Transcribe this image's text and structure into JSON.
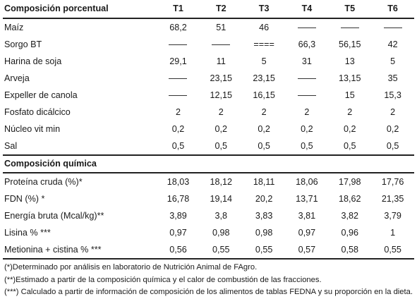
{
  "headers": {
    "label": "Composición porcentual",
    "cols": [
      "T1",
      "T2",
      "T3",
      "T4",
      "T5",
      "T6"
    ]
  },
  "rows1": [
    {
      "label": "Maíz",
      "values": [
        "68,2",
        "51",
        "46",
        "—",
        "—",
        "—"
      ]
    },
    {
      "label": "Sorgo BT",
      "values": [
        "—",
        "—",
        "====",
        "66,3",
        "56,15",
        "42"
      ]
    },
    {
      "label": "Harina de soja",
      "values": [
        "29,1",
        "11",
        "5",
        "31",
        "13",
        "5"
      ]
    },
    {
      "label": "Arveja",
      "values": [
        "—",
        "23,15",
        "23,15",
        "—",
        "13,15",
        "35"
      ]
    },
    {
      "label": "Expeller de canola",
      "values": [
        "—",
        "12,15",
        "16,15",
        "—",
        "15",
        "15,3"
      ]
    },
    {
      "label": "Fosfato dicálcico",
      "values": [
        "2",
        "2",
        "2",
        "2",
        "2",
        "2"
      ]
    },
    {
      "label": "Núcleo vit min",
      "values": [
        "0,2",
        "0,2",
        "0,2",
        "0,2",
        "0,2",
        "0,2"
      ]
    },
    {
      "label": "Sal",
      "values": [
        "0,5",
        "0,5",
        "0,5",
        "0,5",
        "0,5",
        "0,5"
      ]
    }
  ],
  "section2": "Composición química",
  "rows2": [
    {
      "label": "Proteína cruda (%)*",
      "values": [
        "18,03",
        "18,12",
        "18,11",
        "18,06",
        "17,98",
        "17,76"
      ]
    },
    {
      "label": "FDN (%) *",
      "values": [
        "16,78",
        "19,14",
        "20,2",
        "13,71",
        "18,62",
        "21,35"
      ]
    },
    {
      "label": "Energía bruta (Mcal/kg)**",
      "values": [
        "3,89",
        "3,8",
        "3,83",
        "3,81",
        "3,82",
        "3,79"
      ]
    },
    {
      "label": "Lisina % ***",
      "values": [
        "0,97",
        "0,98",
        "0,98",
        "0,97",
        "0,96",
        "1"
      ]
    },
    {
      "label": "Metionina + cistina % ***",
      "values": [
        "0,56",
        "0,55",
        "0,55",
        "0,57",
        "0,58",
        "0,55"
      ]
    }
  ],
  "notes": [
    "(*)Determinado por análisis en laboratorio de Nutrición Animal de FAgro.",
    "(**)Estimado a partir de la composición química y el calor de combustión de las fracciones.",
    "(***) Calculado a partir de información de composición de los alimentos de tablas FEDNA y su proporción en la dieta."
  ]
}
